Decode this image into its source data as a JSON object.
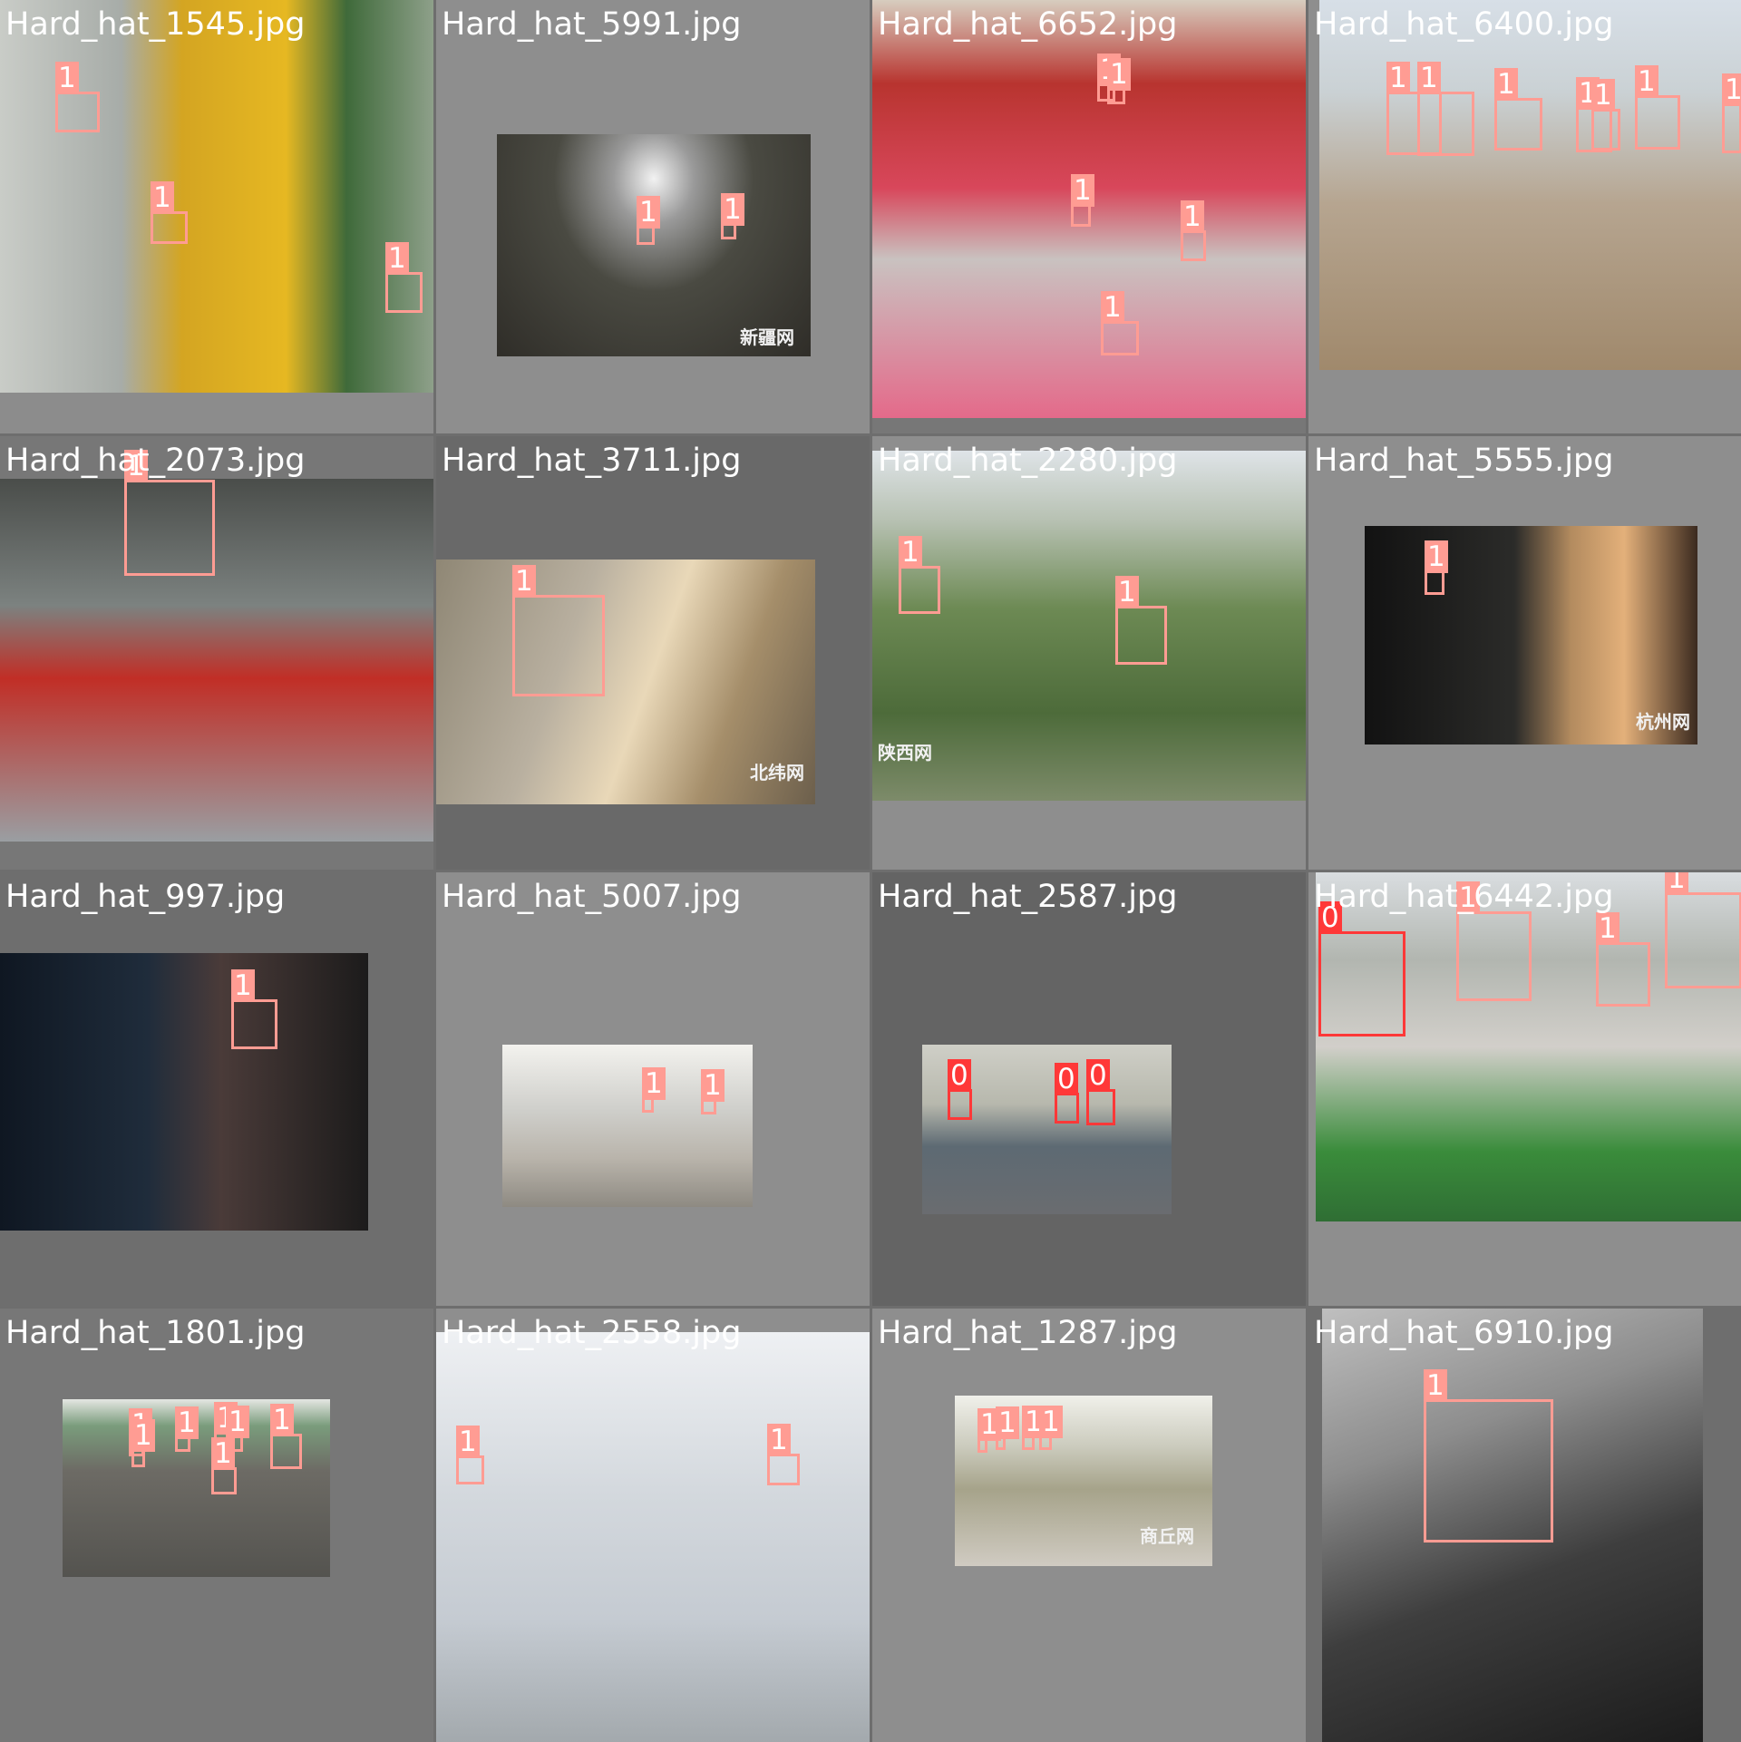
{
  "colors": {
    "class_0": "#ff3838",
    "class_1": "#ff9c93",
    "label_text": "#ffffff",
    "gap": "#6e6e6e"
  },
  "tiles": [
    {
      "filename": "Hard_hat_1545.jpg",
      "bg": "#8c8c8c",
      "scene": "linear-gradient(90deg,#c9ccc7 0%,#a7aca8 28%,#d4a522 42%,#e6b822 66%,#3f6a3a 80%,#8ea08a 100%)",
      "boxes": [
        "1",
        "1",
        "1"
      ]
    },
    {
      "filename": "Hard_hat_5991.jpg",
      "bg": "#8e8e8e",
      "scene": "radial-gradient(ellipse at 50% 20%,#f2f2f2 0%,#9a9a9a 18%,#4a4a42 45%,#2f2d28 100%)",
      "watermark": "新疆网",
      "boxes": [
        "1",
        "1"
      ]
    },
    {
      "filename": "Hard_hat_6652.jpg",
      "bg": "#777777",
      "scene": "linear-gradient(180deg,#d7cdbf 0%,#b8342f 20%,#d8475b 45%,#c9c2c0 62%,#e46a8a 100%)",
      "boxes": [
        "1",
        "1",
        "1",
        "1",
        "1"
      ]
    },
    {
      "filename": "Hard_hat_6400.jpg",
      "bg": "#8e8e8e",
      "scene": "linear-gradient(180deg,#d7dfe7 0%,#cad1d4 25%,#b6a590 55%,#a0896c 100%)",
      "boxes": [
        "1",
        "1",
        "1",
        "1",
        "1",
        "1",
        "1"
      ]
    },
    {
      "filename": "Hard_hat_2073.jpg",
      "bg": "#777777",
      "scene": "linear-gradient(180deg,#4a4d4a 0%,#7c8280 35%,#c12e26 55%,#9a9ea2 100%)",
      "boxes": [
        "1"
      ]
    },
    {
      "filename": "Hard_hat_3711.jpg",
      "bg": "#696969",
      "scene": "linear-gradient(110deg,#8f8775 0%,#b9b0a0 35%,#e9d8b8 55%,#a58e6a 75%,#6c5f4c 100%)",
      "watermark": "北纬网",
      "boxes": [
        "1"
      ]
    },
    {
      "filename": "Hard_hat_2280.jpg",
      "bg": "#8e8e8e",
      "scene": "linear-gradient(180deg,#dfe4e8 0%,#b7c1b2 20%,#6d8a54 45%,#4d6b3a 75%,#7d8b6a 100%)",
      "watermark": "陕西网",
      "boxes": [
        "1",
        "1"
      ]
    },
    {
      "filename": "Hard_hat_5555.jpg",
      "bg": "#8e8e8e",
      "scene": "linear-gradient(90deg,#121212 0%,#2b2b29 45%,#b38b5f 62%,#e3b07a 78%,#3b2a1f 100%)",
      "watermark": "杭州网",
      "boxes": [
        "1"
      ]
    },
    {
      "filename": "Hard_hat_997.jpg",
      "bg": "#6e6e6e",
      "scene": "linear-gradient(90deg,#0f1722 0%,#1f2c3b 40%,#4a3b39 60%,#1c1b1b 100%)",
      "boxes": [
        "1"
      ]
    },
    {
      "filename": "Hard_hat_5007.jpg",
      "bg": "#8e8e8e",
      "scene": "linear-gradient(180deg,#f3f2ee 0%,#cfcfcb 40%,#b9b4ab 70%,#8e8a82 100%)",
      "boxes": [
        "1",
        "1"
      ]
    },
    {
      "filename": "Hard_hat_2587.jpg",
      "bg": "#646464",
      "scene": "linear-gradient(180deg,#cfcfc7 0%,#b7b8ad 35%,#5d6a73 60%,#6a6c70 100%)",
      "boxes": [
        "0",
        "0",
        "0"
      ]
    },
    {
      "filename": "Hard_hat_6442.jpg",
      "bg": "#8e8e8e",
      "scene": "linear-gradient(180deg,#d9dde0 0%,#b2b6b0 25%,#d2cfca 50%,#3a8c3b 80%,#2f6e34 100%)",
      "boxes": [
        "0",
        "1",
        "1",
        "1"
      ]
    },
    {
      "filename": "Hard_hat_1801.jpg",
      "bg": "#777777",
      "scene": "linear-gradient(180deg,#e4e6e2 0%,#7a9c7c 15%,#6d6b65 40%,#54534f 100%)",
      "boxes": [
        "1",
        "1",
        "1",
        "1",
        "1",
        "1",
        "1"
      ]
    },
    {
      "filename": "Hard_hat_2558.jpg",
      "bg": "#8e8e8e",
      "scene": "linear-gradient(180deg,#eef0f3 0%,#d3d8dd 40%,#c5cbd2 70%,#a3a9ad 100%)",
      "boxes": [
        "1",
        "1"
      ]
    },
    {
      "filename": "Hard_hat_1287.jpg",
      "bg": "#8e8e8e",
      "scene": "linear-gradient(180deg,#f0f0ea 0%,#cbcbbd 30%,#a6a38a 55%,#d0cbc2 100%)",
      "watermark": "商丘网",
      "boxes": [
        "1",
        "1",
        "1",
        "1"
      ]
    },
    {
      "filename": "Hard_hat_6910.jpg",
      "bg": "#6e6e6e",
      "scene": "linear-gradient(160deg,#bfbfbf 0%,#8d8d8d 30%,#3e3e3e 60%,#1c1c1c 100%)",
      "boxes": [
        "1"
      ]
    }
  ]
}
